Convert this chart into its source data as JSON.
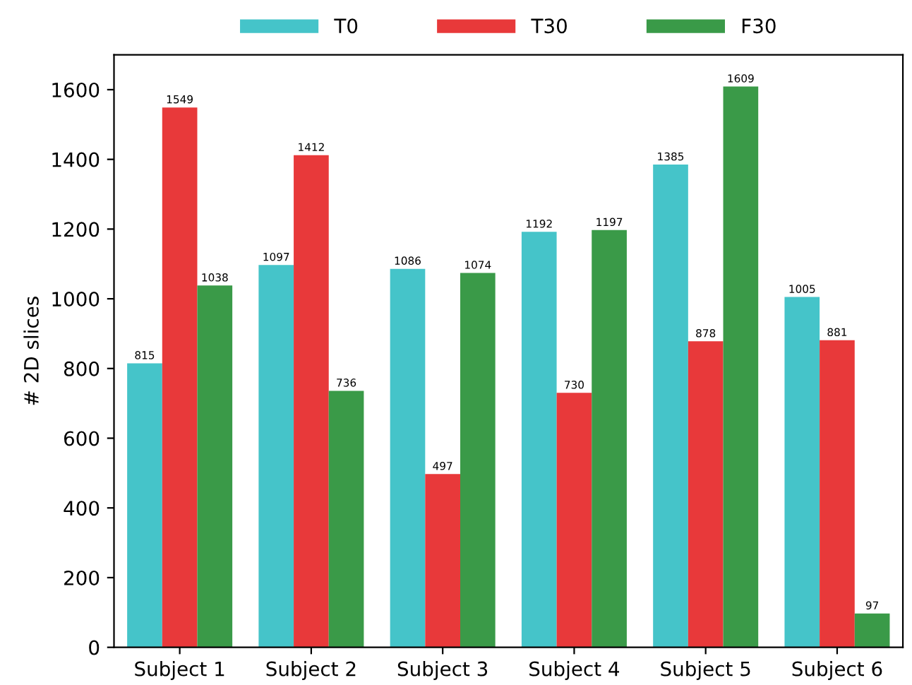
{
  "chart_data": {
    "type": "bar",
    "ylabel": "# 2D slices",
    "categories": [
      "Subject 1",
      "Subject 2",
      "Subject 3",
      "Subject 4",
      "Subject 5",
      "Subject 6"
    ],
    "series": [
      {
        "name": "T0",
        "color": "#45c4c9",
        "values": [
          815,
          1097,
          1086,
          1192,
          1385,
          1005
        ]
      },
      {
        "name": "T30",
        "color": "#e8393a",
        "values": [
          1549,
          1412,
          497,
          730,
          878,
          881
        ]
      },
      {
        "name": "F30",
        "color": "#3a9a48",
        "values": [
          1038,
          736,
          1074,
          1197,
          1609,
          97
        ]
      }
    ],
    "ylim": [
      0,
      1700
    ],
    "yticks": [
      0,
      200,
      400,
      600,
      800,
      1000,
      1200,
      1400,
      1600
    ],
    "data_labels": true,
    "grid": false,
    "legend": "top"
  }
}
